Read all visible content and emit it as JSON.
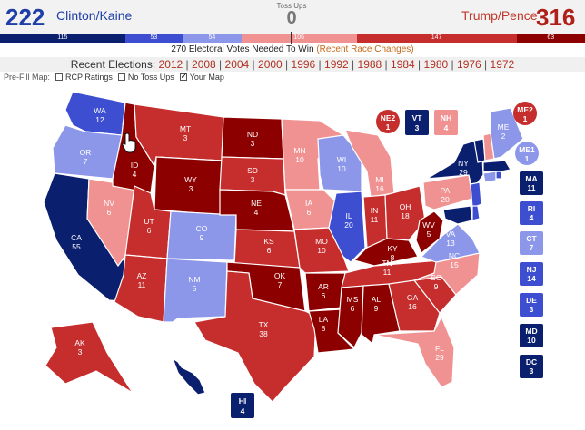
{
  "header": {
    "dem_total": "222",
    "dem_name": "Clinton/Kaine",
    "tossup_label": "Toss Ups",
    "tossup_count": "0",
    "rep_name": "Trump/Pence",
    "rep_total": "316"
  },
  "ev_bar": [
    {
      "label": "115",
      "value": 115,
      "color": "#0a1f6e"
    },
    {
      "label": "53",
      "value": 53,
      "color": "#3d4fd0"
    },
    {
      "label": "54",
      "value": 54,
      "color": "#8c97ea"
    },
    {
      "label": "106",
      "value": 106,
      "color": "#f09292"
    },
    {
      "label": "147",
      "value": 147,
      "color": "#c62d2d"
    },
    {
      "label": "63",
      "value": 63,
      "color": "#8c0000"
    }
  ],
  "needed": {
    "text": "270 Electoral Votes Needed To Win",
    "link": "(Recent Race Changes)"
  },
  "recent": {
    "label": "Recent Elections:",
    "years": [
      "2012",
      "2008",
      "2004",
      "2000",
      "1996",
      "1992",
      "1988",
      "1984",
      "1980",
      "1976",
      "1972"
    ]
  },
  "prefill": {
    "label": "Pre-Fill Map:",
    "options": [
      {
        "label": "RCP Ratings",
        "checked": false
      },
      {
        "label": "No Toss Ups",
        "checked": false
      },
      {
        "label": "Your Map",
        "checked": true
      }
    ]
  },
  "colors": {
    "solid_dem": "#0a1f6e",
    "likely_dem": "#3d4fd0",
    "lean_dem": "#8c97ea",
    "lean_rep": "#f09292",
    "likely_rep": "#c62d2d",
    "solid_rep": "#8c0000"
  },
  "states": {
    "WA": {
      "abbr": "WA",
      "ev": "12",
      "rating": "likely_dem"
    },
    "OR": {
      "abbr": "OR",
      "ev": "7",
      "rating": "lean_dem"
    },
    "CA": {
      "abbr": "CA",
      "ev": "55",
      "rating": "solid_dem"
    },
    "NV": {
      "abbr": "NV",
      "ev": "6",
      "rating": "lean_rep"
    },
    "ID": {
      "abbr": "ID",
      "ev": "4",
      "rating": "solid_rep"
    },
    "MT": {
      "abbr": "MT",
      "ev": "3",
      "rating": "likely_rep"
    },
    "WY": {
      "abbr": "WY",
      "ev": "3",
      "rating": "solid_rep"
    },
    "UT": {
      "abbr": "UT",
      "ev": "6",
      "rating": "likely_rep"
    },
    "AZ": {
      "abbr": "AZ",
      "ev": "11",
      "rating": "likely_rep"
    },
    "CO": {
      "abbr": "CO",
      "ev": "9",
      "rating": "lean_dem"
    },
    "NM": {
      "abbr": "NM",
      "ev": "5",
      "rating": "lean_dem"
    },
    "ND": {
      "abbr": "ND",
      "ev": "3",
      "rating": "solid_rep"
    },
    "SD": {
      "abbr": "SD",
      "ev": "3",
      "rating": "likely_rep"
    },
    "NE": {
      "abbr": "NE",
      "ev": "4",
      "rating": "solid_rep"
    },
    "KS": {
      "abbr": "KS",
      "ev": "6",
      "rating": "likely_rep"
    },
    "OK": {
      "abbr": "OK",
      "ev": "7",
      "rating": "solid_rep"
    },
    "TX": {
      "abbr": "TX",
      "ev": "38",
      "rating": "likely_rep"
    },
    "MN": {
      "abbr": "MN",
      "ev": "10",
      "rating": "lean_rep"
    },
    "IA": {
      "abbr": "IA",
      "ev": "6",
      "rating": "lean_rep"
    },
    "MO": {
      "abbr": "MO",
      "ev": "10",
      "rating": "likely_rep"
    },
    "AR": {
      "abbr": "AR",
      "ev": "6",
      "rating": "solid_rep"
    },
    "LA": {
      "abbr": "LA",
      "ev": "8",
      "rating": "solid_rep"
    },
    "WI": {
      "abbr": "WI",
      "ev": "10",
      "rating": "lean_dem"
    },
    "IL": {
      "abbr": "IL",
      "ev": "20",
      "rating": "likely_dem"
    },
    "MI": {
      "abbr": "MI",
      "ev": "16",
      "rating": "lean_rep"
    },
    "IN": {
      "abbr": "IN",
      "ev": "11",
      "rating": "likely_rep"
    },
    "OH": {
      "abbr": "OH",
      "ev": "18",
      "rating": "likely_rep"
    },
    "KY": {
      "abbr": "KY",
      "ev": "8",
      "rating": "solid_rep"
    },
    "TN": {
      "abbr": "TN",
      "ev": "11",
      "rating": "likely_rep"
    },
    "MS": {
      "abbr": "MS",
      "ev": "6",
      "rating": "solid_rep"
    },
    "AL": {
      "abbr": "AL",
      "ev": "9",
      "rating": "solid_rep"
    },
    "GA": {
      "abbr": "GA",
      "ev": "16",
      "rating": "likely_rep"
    },
    "FL": {
      "abbr": "FL",
      "ev": "29",
      "rating": "lean_rep"
    },
    "SC": {
      "abbr": "SC",
      "ev": "9",
      "rating": "likely_rep"
    },
    "NC": {
      "abbr": "NC",
      "ev": "15",
      "rating": "lean_rep"
    },
    "VA": {
      "abbr": "VA",
      "ev": "13",
      "rating": "lean_dem"
    },
    "WV": {
      "abbr": "WV",
      "ev": "5",
      "rating": "solid_rep"
    },
    "PA": {
      "abbr": "PA",
      "ev": "20",
      "rating": "lean_rep"
    },
    "NY": {
      "abbr": "NY",
      "ev": "29",
      "rating": "solid_dem"
    },
    "ME": {
      "abbr": "ME",
      "ev": "2",
      "rating": "lean_dem"
    },
    "AK": {
      "abbr": "AK",
      "ev": "3",
      "rating": "likely_rep"
    },
    "HI": {
      "abbr": "HI",
      "ev": "4",
      "rating": "solid_dem"
    },
    "VT": {
      "abbr": "VT",
      "ev": "3",
      "rating": "solid_dem"
    },
    "NH": {
      "abbr": "NH",
      "ev": "4",
      "rating": "lean_rep"
    },
    "NE2": {
      "abbr": "NE2",
      "ev": "1",
      "rating": "likely_rep"
    },
    "ME2": {
      "abbr": "ME2",
      "ev": "1",
      "rating": "likely_rep"
    },
    "ME1": {
      "abbr": "ME1",
      "ev": "1",
      "rating": "lean_dem"
    },
    "MA": {
      "abbr": "MA",
      "ev": "11",
      "rating": "solid_dem"
    },
    "RI": {
      "abbr": "RI",
      "ev": "4",
      "rating": "likely_dem"
    },
    "CT": {
      "abbr": "CT",
      "ev": "7",
      "rating": "lean_dem"
    },
    "NJ": {
      "abbr": "NJ",
      "ev": "14",
      "rating": "likely_dem"
    },
    "DE": {
      "abbr": "DE",
      "ev": "3",
      "rating": "likely_dem"
    },
    "MD": {
      "abbr": "MD",
      "ev": "10",
      "rating": "solid_dem"
    },
    "DC": {
      "abbr": "DC",
      "ev": "3",
      "rating": "solid_dem"
    }
  },
  "cursor_icon": "hand-pointer-icon"
}
